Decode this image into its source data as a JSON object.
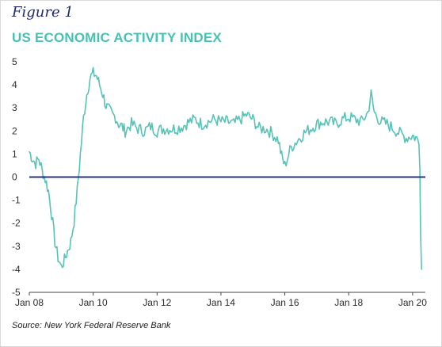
{
  "figure_label": "Figure 1",
  "source": "Source: New York Federal Reserve Bank",
  "colors": {
    "title": "#48c1b4",
    "series": "#58c2b6",
    "zero_line": "#25318f",
    "figure_label": "#1f2a66"
  },
  "chart_data": {
    "type": "line",
    "title": "US ECONOMIC ACTIVITY INDEX",
    "xlabel": "",
    "ylabel": "",
    "xlim": [
      2008.0,
      2020.4
    ],
    "ylim": [
      -5,
      5
    ],
    "y_ticks": [
      5,
      4,
      3,
      2,
      1,
      0,
      -1,
      -2,
      -3,
      -4,
      -5
    ],
    "x_ticks": [
      {
        "label": "Jan 08",
        "value": 2008
      },
      {
        "label": "Jan 10",
        "value": 2010
      },
      {
        "label": "Jan 12",
        "value": 2012
      },
      {
        "label": "Jan 14",
        "value": 2014
      },
      {
        "label": "Jan 16",
        "value": 2016
      },
      {
        "label": "Jan 18",
        "value": 2018
      },
      {
        "label": "Jan 20",
        "value": 2020
      }
    ],
    "grid": false,
    "reference_line": {
      "y": 0
    },
    "series": [
      {
        "x": [
          2008.0,
          2008.1,
          2008.2,
          2008.3,
          2008.4,
          2008.5,
          2008.6,
          2008.7,
          2008.8,
          2008.9,
          2009.0,
          2009.1,
          2009.2,
          2009.3,
          2009.4,
          2009.5,
          2009.6,
          2009.7,
          2009.8,
          2009.9,
          2010.0,
          2010.1,
          2010.2,
          2010.3,
          2010.4,
          2010.5,
          2010.6,
          2010.7,
          2010.8,
          2010.9,
          2011.0,
          2011.2,
          2011.4,
          2011.6,
          2011.8,
          2012.0,
          2012.2,
          2012.4,
          2012.6,
          2012.8,
          2013.0,
          2013.2,
          2013.4,
          2013.6,
          2013.8,
          2014.0,
          2014.2,
          2014.4,
          2014.6,
          2014.8,
          2015.0,
          2015.2,
          2015.4,
          2015.6,
          2015.8,
          2015.9,
          2016.0,
          2016.2,
          2016.4,
          2016.6,
          2016.8,
          2017.0,
          2017.2,
          2017.4,
          2017.6,
          2017.8,
          2018.0,
          2018.2,
          2018.4,
          2018.6,
          2018.7,
          2018.8,
          2019.0,
          2019.2,
          2019.4,
          2019.6,
          2019.8,
          2020.0,
          2020.1,
          2020.17,
          2020.2,
          2020.23,
          2020.25,
          2020.28
        ],
        "y": [
          1.1,
          0.8,
          0.6,
          0.8,
          0.3,
          -0.1,
          -0.6,
          -1.6,
          -2.8,
          -3.5,
          -3.9,
          -3.6,
          -3.2,
          -2.8,
          -1.9,
          -0.6,
          1.0,
          2.6,
          3.6,
          4.3,
          4.5,
          4.4,
          4.0,
          3.6,
          3.1,
          2.9,
          2.7,
          2.6,
          2.3,
          2.2,
          2.0,
          2.3,
          2.1,
          2.0,
          2.2,
          2.0,
          2.1,
          2.1,
          2.1,
          2.2,
          2.4,
          2.5,
          2.3,
          2.4,
          2.5,
          2.4,
          2.4,
          2.3,
          2.5,
          2.7,
          2.5,
          2.1,
          2.1,
          1.9,
          1.6,
          0.9,
          0.5,
          1.3,
          1.6,
          1.9,
          2.1,
          2.3,
          2.4,
          2.4,
          2.3,
          2.5,
          2.6,
          2.5,
          2.4,
          2.8,
          3.6,
          2.8,
          2.4,
          2.3,
          2.1,
          1.9,
          1.7,
          1.8,
          1.7,
          1.6,
          1.4,
          0.3,
          -2.5,
          -4.0
        ]
      }
    ]
  }
}
